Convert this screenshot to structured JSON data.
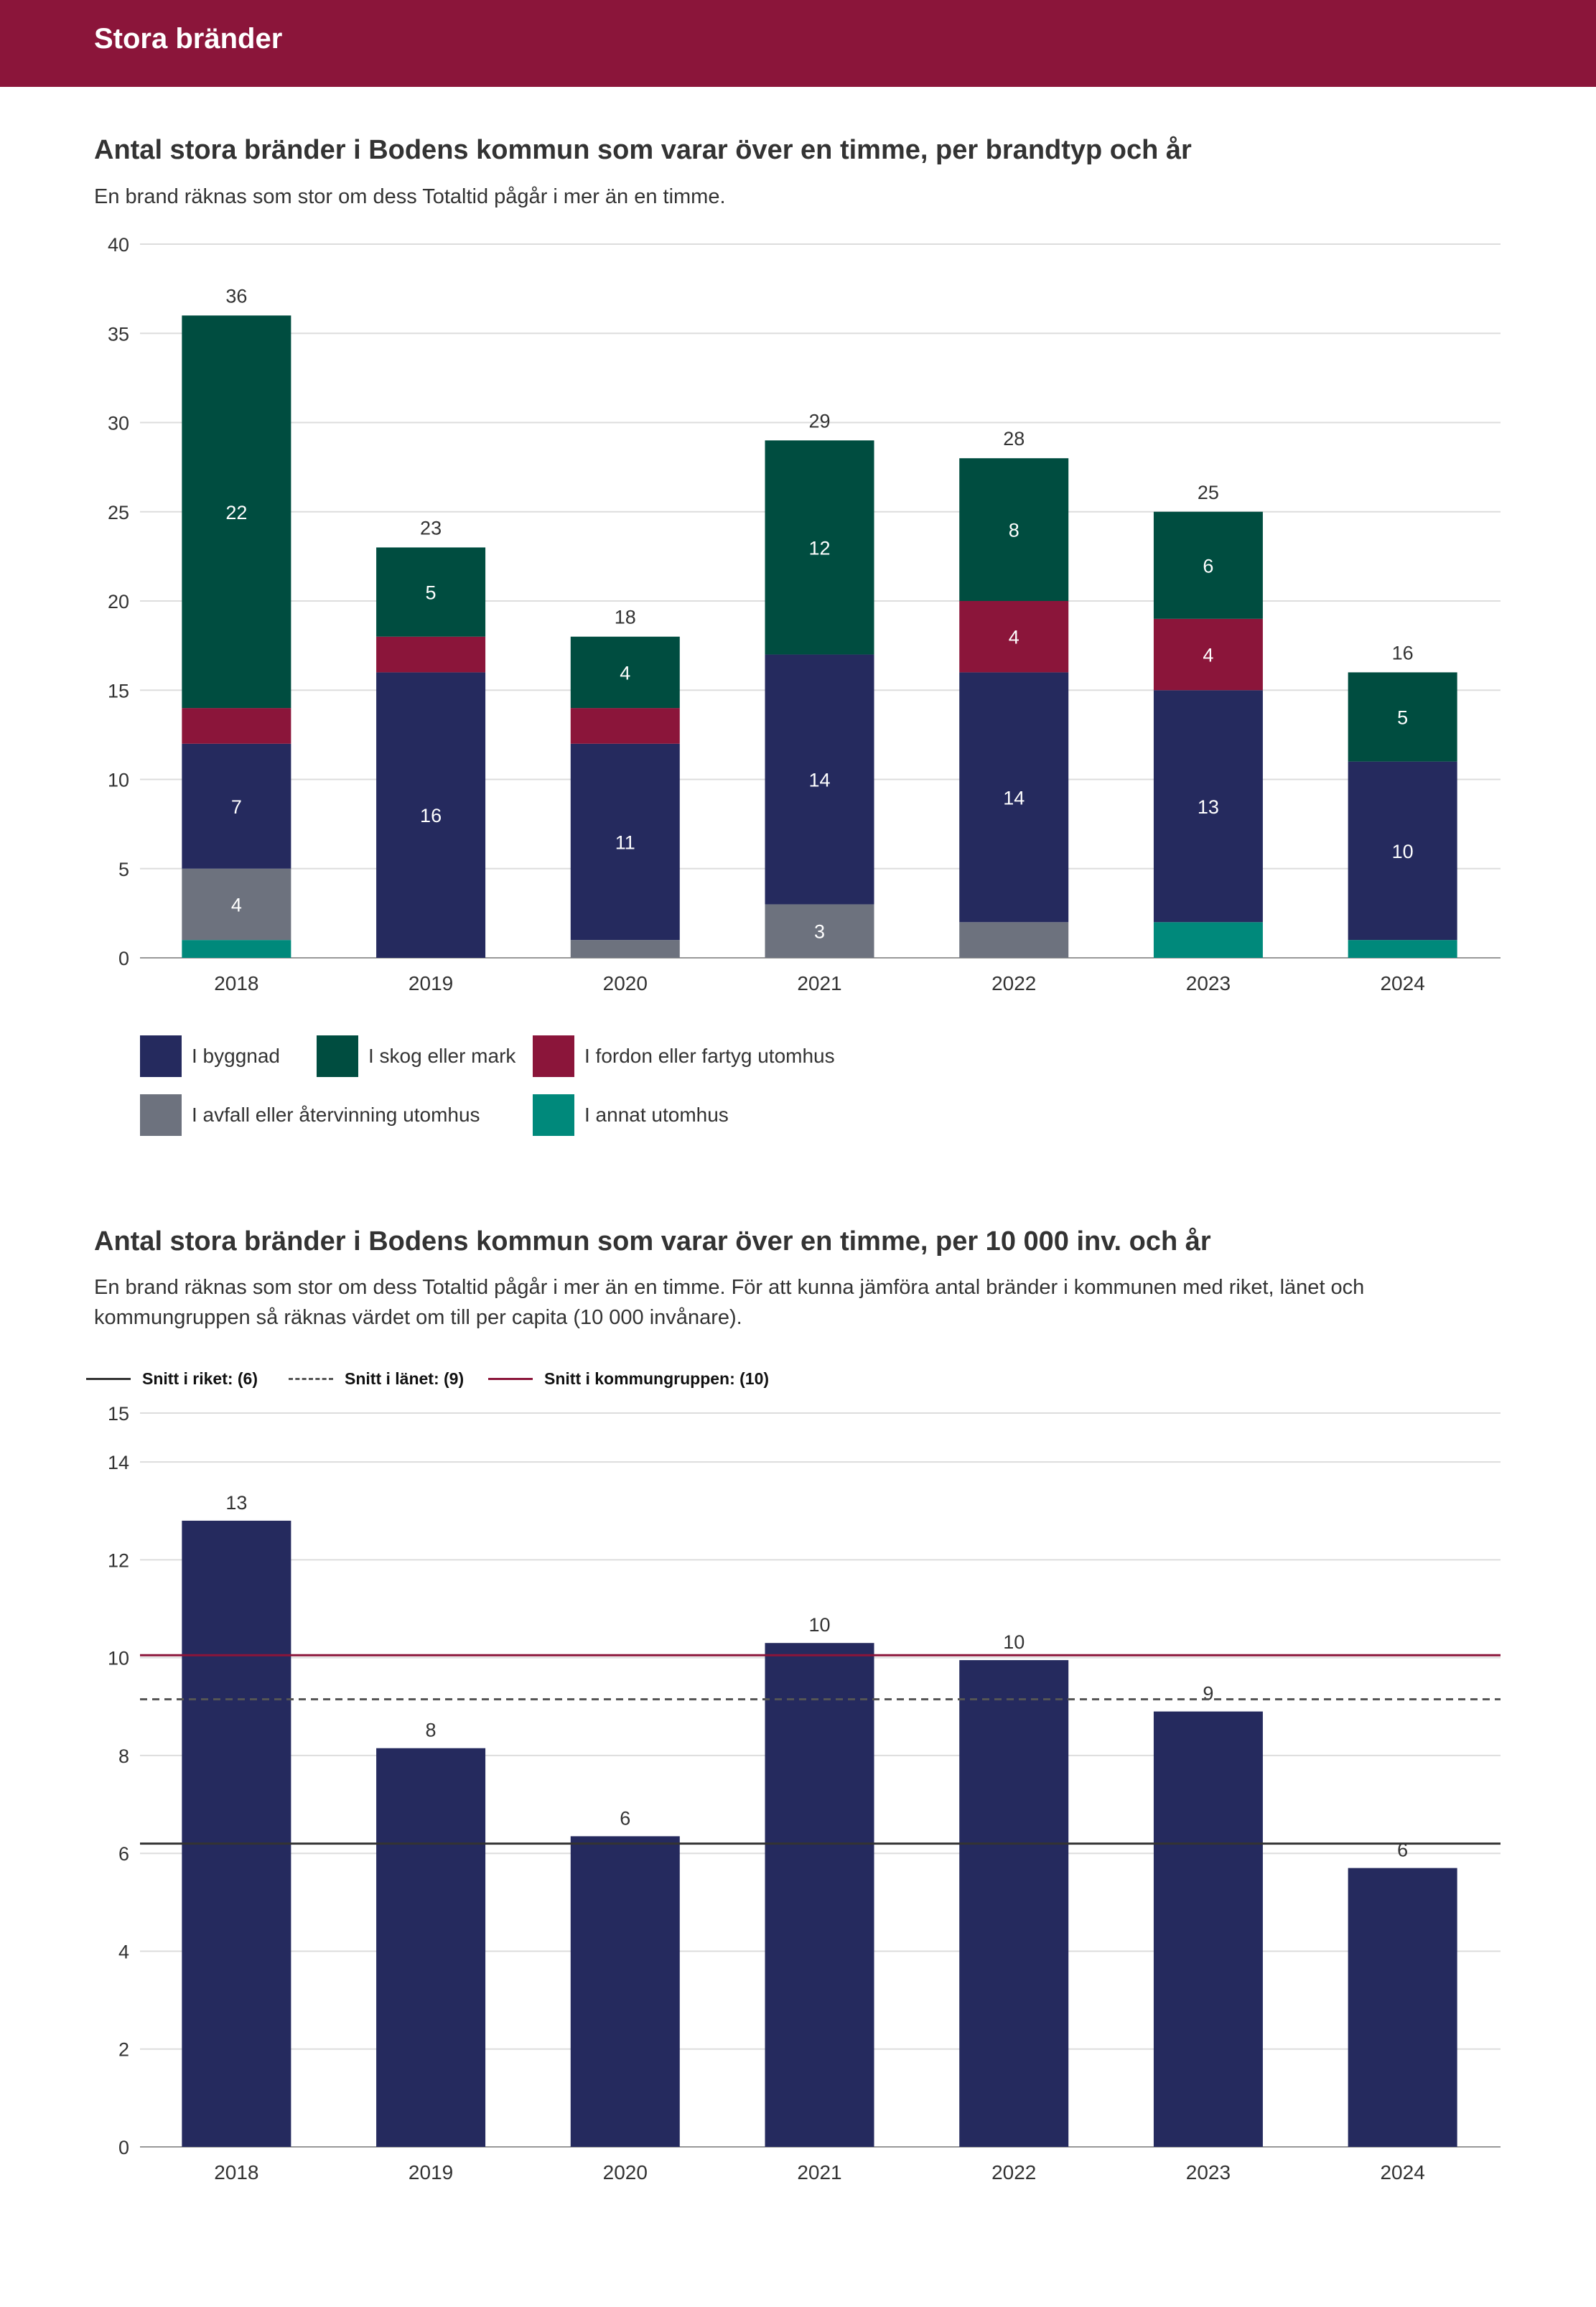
{
  "page": {
    "title": "Stora bränder"
  },
  "colors": {
    "header": "#8b153a",
    "i_byggnad": "#252a5e",
    "i_skog": "#004d40",
    "i_fordon": "#8b153a",
    "i_avfall": "#6d727e",
    "i_annat": "#00897b",
    "snitt_riket": "#333333",
    "snitt_lanet": "#555555",
    "snitt_kommungrupp": "#8b153a"
  },
  "chart1": {
    "title": "Antal stora bränder i Bodens kommun som varar över en timme, per brandtyp och år",
    "subtitle": "En brand räknas som stor om dess Totaltid pågår i mer än en timme."
  },
  "chart2": {
    "title": "Antal stora bränder i Bodens kommun som varar över en timme, per 10 000 inv. och år",
    "subtitle": "En brand räknas som stor om dess Totaltid pågår i mer än en timme. För att kunna jämföra antal bränder i kommunen med riket, länet och kommungruppen så räknas värdet om till per capita (10 000 invånare)."
  },
  "chart_data": [
    {
      "type": "bar",
      "stacked": true,
      "categories": [
        "2018",
        "2019",
        "2020",
        "2021",
        "2022",
        "2023",
        "2024"
      ],
      "series": [
        {
          "name": "I annat utomhus",
          "values": [
            1,
            0,
            0,
            0,
            0,
            2,
            1
          ],
          "labels": [
            "",
            "",
            "",
            "",
            "",
            "",
            ""
          ]
        },
        {
          "name": "I avfall eller återvinning utomhus",
          "values": [
            4,
            0,
            1,
            3,
            2,
            0,
            0
          ],
          "labels": [
            "4",
            "",
            "",
            "3",
            "",
            "",
            ""
          ]
        },
        {
          "name": "I byggnad",
          "values": [
            7,
            16,
            11,
            14,
            14,
            13,
            10
          ],
          "labels": [
            "7",
            "16",
            "11",
            "14",
            "14",
            "13",
            "10"
          ]
        },
        {
          "name": "I fordon eller fartyg utomhus",
          "values": [
            2,
            2,
            2,
            0,
            4,
            4,
            0
          ],
          "labels": [
            "",
            "",
            "",
            "",
            "4",
            "4",
            ""
          ]
        },
        {
          "name": "I skog eller mark",
          "values": [
            22,
            5,
            4,
            12,
            8,
            6,
            5
          ],
          "labels": [
            "22",
            "5",
            "4",
            "12",
            "8",
            "6",
            "5"
          ]
        }
      ],
      "totals": [
        36,
        23,
        18,
        29,
        28,
        25,
        16
      ],
      "yticks": [
        "0",
        "5",
        "10",
        "15",
        "20",
        "25",
        "30",
        "35",
        "40"
      ],
      "ylim": [
        0,
        40
      ],
      "grid": true,
      "legend": [
        {
          "name": "I byggnad",
          "color": "#252a5e"
        },
        {
          "name": "I skog eller mark",
          "color": "#004d40"
        },
        {
          "name": "I fordon eller fartyg utomhus",
          "color": "#8b153a"
        },
        {
          "name": "I avfall eller återvinning utomhus",
          "color": "#6d727e"
        },
        {
          "name": "I annat utomhus",
          "color": "#00897b"
        }
      ],
      "legend_position": "bottom"
    },
    {
      "type": "bar",
      "categories": [
        "2018",
        "2019",
        "2020",
        "2021",
        "2022",
        "2023",
        "2024"
      ],
      "values": [
        12.8,
        8.15,
        6.35,
        10.3,
        9.95,
        8.9,
        5.7
      ],
      "value_labels": [
        "13",
        "8",
        "6",
        "10",
        "10",
        "9",
        "6"
      ],
      "reference_lines": [
        {
          "name": "Snitt i riket: (6)",
          "value": 6.2,
          "style": "solid",
          "color": "#333333"
        },
        {
          "name": "Snitt i länet: (9)",
          "value": 9.15,
          "style": "dashed",
          "color": "#555555"
        },
        {
          "name": "Snitt i kommungruppen: (10)",
          "value": 10.05,
          "style": "solid",
          "color": "#8b153a"
        }
      ],
      "yticks": [
        "0",
        "2",
        "4",
        "6",
        "8",
        "10",
        "12",
        "14",
        "15"
      ],
      "ylim": [
        0,
        15
      ],
      "grid": true,
      "legend_position": "top"
    }
  ]
}
